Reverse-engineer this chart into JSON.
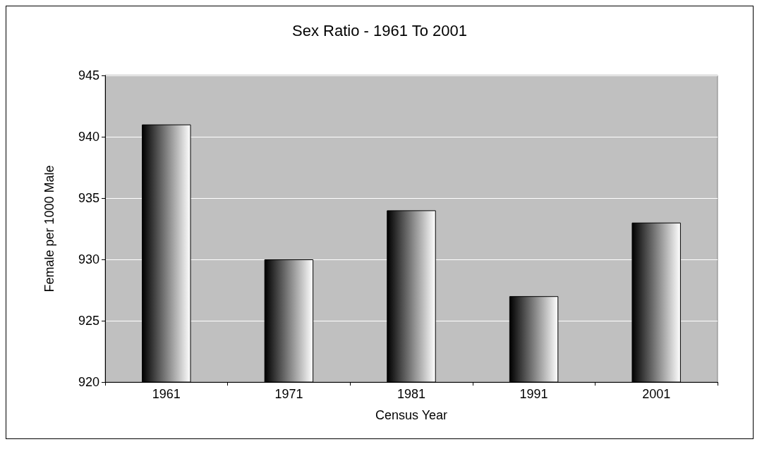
{
  "chart_data": {
    "type": "bar",
    "title": "Sex Ratio - 1961 To 2001",
    "xlabel": "Census Year",
    "ylabel": "Female per 1000 Male",
    "categories": [
      "1961",
      "1971",
      "1981",
      "1991",
      "2001"
    ],
    "values": [
      941,
      930,
      934,
      927,
      933
    ],
    "color": "#000000",
    "ylim": [
      920,
      945
    ],
    "yticks": [
      920,
      925,
      930,
      935,
      940,
      945
    ],
    "grid": "y"
  }
}
